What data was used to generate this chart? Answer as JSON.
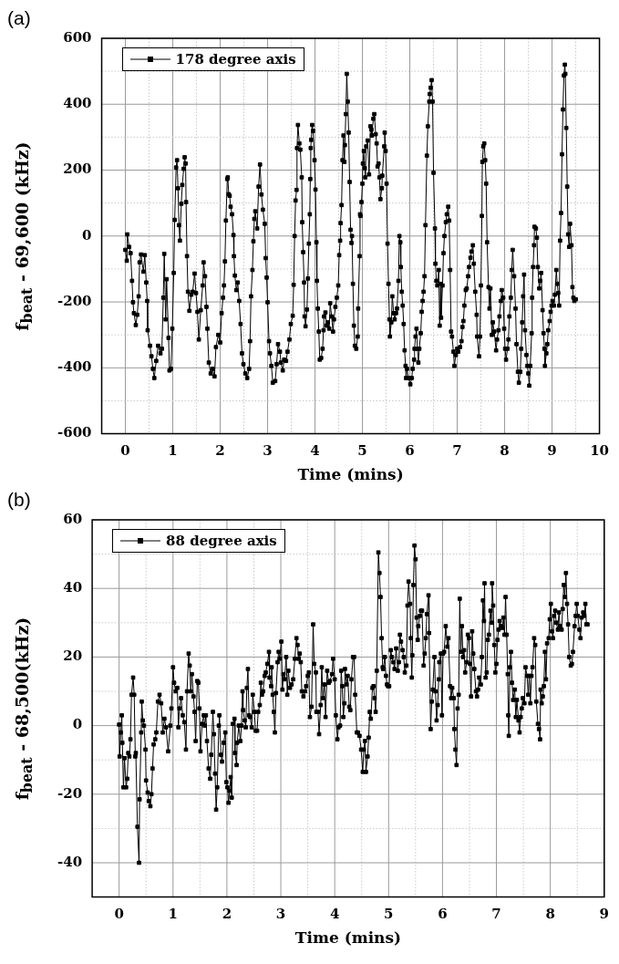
{
  "chart_data": [
    {
      "type": "line",
      "title": "(a)",
      "xlabel": "Time (mins)",
      "ylabel": "f$_{beat}$ - 69,600 (kHz)",
      "xlim": [
        -0.5,
        10
      ],
      "ylim": [
        -600,
        600
      ],
      "xticks": [
        0,
        {
          "value": 0.5,
          "label": null
        },
        1,
        {
          "value": 1.5,
          "label": null
        },
        2,
        {
          "value": 2.5,
          "label": null
        },
        3,
        {
          "value": 3.5,
          "label": null
        },
        4,
        {
          "value": 4.5,
          "label": null
        },
        5,
        {
          "value": 5.5,
          "label": null
        },
        6,
        {
          "value": 6.5,
          "label": null
        },
        7,
        {
          "value": 7.5,
          "label": null
        },
        8,
        {
          "value": 8.5,
          "label": null
        },
        9,
        {
          "value": 9.5,
          "label": null
        },
        10
      ],
      "yticks": [
        -600,
        {
          "value": -500,
          "label": null
        },
        -400,
        {
          "value": -300,
          "label": null
        },
        -200,
        {
          "value": -100,
          "label": null
        },
        0,
        {
          "value": 100,
          "label": null
        },
        200,
        {
          "value": 300,
          "label": null
        },
        400,
        {
          "value": 500,
          "label": null
        },
        600
      ],
      "grid": true,
      "legend": "top left",
      "marker": "square",
      "line_style": "solid",
      "series": [
        {
          "name": "178 degree axis",
          "color": "#000000",
          "x": [
            0,
            0.03,
            0.04,
            0.08,
            0.11,
            0.14,
            0.16,
            0.18,
            0.22,
            0.25,
            0.28,
            0.3,
            0.33,
            0.38,
            0.41,
            0.44,
            0.46,
            0.47,
            0.52,
            0.55,
            0.58,
            0.61,
            0.65,
            0.69,
            0.74,
            0.77,
            0.8,
            0.82,
            0.85,
            0.87,
            0.91,
            0.93,
            0.96,
            0.99,
            1.02,
            1.04,
            1.07,
            1.09,
            1.11,
            1.13,
            1.15,
            1.18,
            1.2,
            1.23,
            1.25,
            1.27,
            1.28,
            1.3,
            1.32,
            1.35,
            1.39,
            1.42,
            1.46,
            1.49,
            1.52,
            1.55,
            1.59,
            1.63,
            1.65,
            1.68,
            1.71,
            1.73,
            1.76,
            1.8,
            1.84,
            1.88,
            1.91,
            1.96,
            2.0,
            2.03,
            2.06,
            2.08,
            2.1,
            2.12,
            2.15,
            2.16,
            2.18,
            2.2,
            2.22,
            2.25,
            2.28,
            2.29,
            2.31,
            2.34,
            2.37,
            2.4,
            2.43,
            2.46,
            2.49,
            2.53,
            2.57,
            2.61,
            2.63,
            2.65,
            2.68,
            2.7,
            2.72,
            2.74,
            2.78,
            2.81,
            2.84,
            2.87,
            2.9,
            2.94,
            2.96,
            2.98,
            3.0,
            3.03,
            3.05,
            3.08,
            3.11,
            3.16,
            3.19,
            3.22,
            3.26,
            3.28,
            3.32,
            3.35,
            3.39,
            3.42,
            3.46,
            3.49,
            3.53,
            3.55,
            3.57,
            3.59,
            3.61,
            3.62,
            3.64,
            3.67,
            3.69,
            3.72,
            3.73,
            3.75,
            3.77,
            3.78,
            3.8,
            3.83,
            3.85,
            3.87,
            3.89,
            3.9,
            3.91,
            3.92,
            3.94,
            3.96,
            3.99,
            4.01,
            4.03,
            4.04,
            4.06,
            4.08,
            4.1,
            4.13,
            4.16,
            4.18,
            4.19,
            4.22,
            4.24,
            4.27,
            4.3,
            4.32,
            4.35,
            4.38,
            4.4,
            4.43,
            4.46,
            4.49,
            4.51,
            4.53,
            4.54,
            4.56,
            4.58,
            4.6,
            4.62,
            4.63,
            4.65,
            4.67,
            4.69,
            4.71,
            4.73,
            4.75,
            4.77,
            4.78,
            4.8,
            4.82,
            4.84,
            4.87,
            4.9,
            4.91,
            4.94,
            4.95,
            4.96,
            4.98,
            5.0,
            5.01,
            5.03,
            5.05,
            5.06,
            5.08,
            5.11,
            5.14,
            5.17,
            5.19,
            5.2,
            5.23,
            5.25,
            5.28,
            5.3,
            5.32,
            5.34,
            5.36,
            5.38,
            5.41,
            5.42,
            5.46,
            5.47,
            5.49,
            5.51,
            5.53,
            5.55,
            5.57,
            5.58,
            5.61,
            5.63,
            5.66,
            5.68,
            5.71,
            5.73,
            5.76,
            5.78,
            5.8,
            5.81,
            5.83,
            5.85,
            5.87,
            5.89,
            5.91,
            5.92,
            5.94,
            5.97,
            6.01,
            6.04,
            6.06,
            6.09,
            6.1,
            6.12,
            6.14,
            6.16,
            6.18,
            6.2,
            6.23,
            6.25,
            6.27,
            6.29,
            6.31,
            6.33,
            6.36,
            6.38,
            6.41,
            6.42,
            6.44,
            6.46,
            6.48,
            6.5,
            6.53,
            6.54,
            6.56,
            6.58,
            6.61,
            6.63,
            6.65,
            6.66,
            6.69,
            6.71,
            6.73,
            6.76,
            6.78,
            6.81,
            6.83,
            6.85,
            6.87,
            6.89,
            6.92,
            6.94,
            6.97,
            7.0,
            7.02,
            7.06,
            7.09,
            7.11,
            7.13,
            7.15,
            7.18,
            7.2,
            7.23,
            7.25,
            7.28,
            7.3,
            7.33,
            7.35,
            7.38,
            7.41,
            7.42,
            7.46,
            7.48,
            7.5,
            7.52,
            7.53,
            7.55,
            7.57,
            7.59,
            7.61,
            7.63,
            7.66,
            7.68,
            7.7,
            7.73,
            7.75,
            7.78,
            7.82,
            7.84,
            7.87,
            7.89,
            7.92,
            7.94,
            7.97,
            7.99,
            8.01,
            8.03,
            8.06,
            8.08,
            8.1,
            8.13,
            8.15,
            8.17,
            8.2,
            8.23,
            8.25,
            8.28,
            8.3,
            8.33,
            8.35,
            8.37,
            8.39,
            8.41,
            8.43,
            8.46,
            8.48,
            8.5,
            8.52,
            8.54,
            8.57,
            8.58,
            8.6,
            8.62,
            8.63,
            8.66,
            8.68,
            8.7,
            8.73,
            8.75,
            8.77,
            8.8,
            8.82,
            8.84,
            8.85,
            8.88,
            8.9,
            8.92,
            8.95,
            8.97,
            8.99,
            9.01,
            9.04,
            9.06,
            9.09,
            9.11,
            9.13,
            9.15,
            9.17,
            9.19,
            9.21,
            9.23,
            9.25,
            9.27,
            9.28,
            9.3,
            9.32,
            9.34,
            9.36,
            9.38,
            9.41,
            9.43,
            9.45,
            9.47,
            9.5
          ],
          "values": [
            -42,
            -75,
            5,
            -33,
            -52,
            -136,
            -201,
            -234,
            -270,
            -239,
            -183,
            -80,
            -56,
            -108,
            -58,
            -141,
            -197,
            -286,
            -333,
            -365,
            -403,
            -431,
            -379,
            -333,
            -356,
            -342,
            -187,
            -54,
            -253,
            -131,
            -309,
            -408,
            -403,
            -281,
            -112,
            49,
            208,
            230,
            145,
            33,
            -14,
            98,
            155,
            204,
            239,
            220,
            103,
            -61,
            -169,
            -227,
            -178,
            -169,
            -114,
            -173,
            -230,
            -314,
            -225,
            -150,
            -80,
            -122,
            -215,
            -281,
            -384,
            -417,
            -403,
            -426,
            -337,
            -300,
            -323,
            -234,
            -187,
            -150,
            -77,
            47,
            173,
            178,
            127,
            122,
            89,
            66,
            3,
            -61,
            -120,
            -164,
            -141,
            -197,
            -267,
            -356,
            -389,
            -417,
            -431,
            -403,
            -319,
            -183,
            -103,
            -16,
            52,
            75,
            23,
            150,
            217,
            126,
            80,
            37,
            -67,
            -126,
            -201,
            -319,
            -356,
            -394,
            -445,
            -440,
            -389,
            -328,
            -351,
            -384,
            -408,
            -375,
            -379,
            -351,
            -314,
            -267,
            -242,
            -148,
            0,
            108,
            140,
            267,
            337,
            281,
            262,
            178,
            42,
            -49,
            -141,
            -244,
            -274,
            -223,
            -129,
            -23,
            66,
            173,
            267,
            292,
            337,
            319,
            230,
            141,
            -19,
            -136,
            -220,
            -290,
            -375,
            -370,
            -342,
            -286,
            -244,
            -232,
            -272,
            -262,
            -281,
            -204,
            -244,
            -290,
            -253,
            -215,
            -187,
            -150,
            -58,
            -14,
            39,
            94,
            230,
            305,
            225,
            276,
            370,
            492,
            408,
            314,
            164,
            19,
            -21,
            0,
            -145,
            -272,
            -333,
            -342,
            -305,
            -220,
            -61,
            66,
            61,
            103,
            159,
            220,
            258,
            206,
            178,
            272,
            290,
            187,
            333,
            323,
            305,
            356,
            370,
            309,
            281,
            211,
            220,
            178,
            112,
            145,
            183,
            272,
            314,
            258,
            159,
            -23,
            -145,
            -253,
            -305,
            -262,
            -183,
            -234,
            -253,
            -234,
            -220,
            -136,
            0,
            -19,
            -94,
            -169,
            -211,
            -267,
            -347,
            -394,
            -431,
            -403,
            -431,
            -450,
            -431,
            -403,
            -375,
            -342,
            -305,
            -281,
            -342,
            -384,
            -342,
            -295,
            -230,
            -197,
            -169,
            -122,
            33,
            244,
            333,
            408,
            431,
            450,
            473,
            408,
            192,
            23,
            -84,
            -136,
            -150,
            -103,
            -272,
            -145,
            -248,
            -150,
            -52,
            0,
            42,
            66,
            89,
            47,
            -103,
            -290,
            -305,
            -351,
            -394,
            -361,
            -342,
            -351,
            -337,
            -319,
            -276,
            -258,
            -211,
            -164,
            -159,
            -122,
            -94,
            -66,
            -47,
            -28,
            -84,
            -169,
            -239,
            -305,
            -365,
            -305,
            -150,
            61,
            225,
            272,
            281,
            230,
            159,
            -19,
            -155,
            -220,
            -159,
            -300,
            -262,
            -290,
            -347,
            -314,
            -286,
            -244,
            -197,
            -164,
            -187,
            -281,
            -342,
            -375,
            -342,
            -314,
            -244,
            -187,
            -103,
            -42,
            -122,
            -220,
            -328,
            -412,
            -445,
            -412,
            -342,
            -262,
            -183,
            -117,
            -286,
            -361,
            -394,
            -417,
            -454,
            -394,
            -295,
            -187,
            -94,
            -28,
            28,
            23,
            -5,
            -94,
            -159,
            -136,
            -112,
            -225,
            -295,
            -342,
            -394,
            -356,
            -328,
            -286,
            -258,
            -230,
            -211,
            -197,
            -211,
            -178,
            -103,
            -145,
            -173,
            -211,
            -14,
            70,
            248,
            384,
            487,
            520,
            492,
            328,
            150,
            5,
            -33,
            37,
            -28,
            -155,
            -187,
            -197,
            -192
          ]
        }
      ]
    },
    {
      "type": "line",
      "title": "(b)",
      "xlabel": "Time (mins)",
      "ylabel": "f$_{beat}$ - 68,500(kHz)",
      "xlim": [
        -0.5,
        9
      ],
      "ylim": [
        -50,
        60
      ],
      "xticks": [
        0,
        {
          "value": 0.5,
          "label": null
        },
        1,
        {
          "value": 1.5,
          "label": null
        },
        2,
        {
          "value": 2.5,
          "label": null
        },
        3,
        {
          "value": 3.5,
          "label": null
        },
        4,
        {
          "value": 4.5,
          "label": null
        },
        5,
        {
          "value": 5.5,
          "label": null
        },
        6,
        {
          "value": 6.5,
          "label": null
        },
        7,
        {
          "value": 7.5,
          "label": null
        },
        8,
        {
          "value": 8.5,
          "label": null
        },
        9
      ],
      "yticks": [
        -40,
        {
          "value": -30,
          "label": null
        },
        -20,
        {
          "value": -10,
          "label": null
        },
        0,
        {
          "value": 10,
          "label": null
        },
        20,
        {
          "value": 30,
          "label": null
        },
        40,
        {
          "value": 50,
          "label": null
        },
        60
      ],
      "grid": true,
      "legend": "top left",
      "marker": "square",
      "line_style": "solid",
      "series": [
        {
          "name": "88 degree axis",
          "color": "#000000",
          "x": [
            0.0,
            0.01,
            0.03,
            0.05,
            0.06,
            0.08,
            0.1,
            0.13,
            0.15,
            0.17,
            0.19,
            0.21,
            0.23,
            0.26,
            0.28,
            0.3,
            0.31,
            0.34,
            0.37,
            0.38,
            0.41,
            0.42,
            0.44,
            0.46,
            0.49,
            0.5,
            0.53,
            0.55,
            0.58,
            0.6,
            0.62,
            0.64,
            0.67,
            0.69,
            0.72,
            0.75,
            0.78,
            0.81,
            0.84,
            0.87,
            0.91,
            0.95,
            0.97,
            1.0,
            1.02,
            1.05,
            1.08,
            1.1,
            1.12,
            1.15,
            1.18,
            1.21,
            1.24,
            1.26,
            1.29,
            1.31,
            1.33,
            1.35,
            1.38,
            1.4,
            1.42,
            1.45,
            1.47,
            1.49,
            1.51,
            1.54,
            1.57,
            1.59,
            1.61,
            1.63,
            1.66,
            1.69,
            1.71,
            1.74,
            1.76,
            1.78,
            1.8,
            1.82,
            1.85,
            1.86,
            1.89,
            1.91,
            1.94,
            1.97,
            1.99,
            2.01,
            2.03,
            2.05,
            2.07,
            2.09,
            2.11,
            2.14,
            2.15,
            2.18,
            2.19,
            2.22,
            2.25,
            2.27,
            2.29,
            2.3,
            2.33,
            2.35,
            2.37,
            2.39,
            2.41,
            2.43,
            2.46,
            2.48,
            2.51,
            2.53,
            2.56,
            2.58,
            2.61,
            2.63,
            2.65,
            2.67,
            2.7,
            2.72,
            2.75,
            2.78,
            2.79,
            2.82,
            2.83,
            2.85,
            2.87,
            2.89,
            2.91,
            2.94,
            2.96,
            2.98,
            3.01,
            3.03,
            3.05,
            3.07,
            3.1,
            3.12,
            3.14,
            3.17,
            3.2,
            3.23,
            3.26,
            3.29,
            3.31,
            3.33,
            3.35,
            3.37,
            3.39,
            3.42,
            3.45,
            3.47,
            3.5,
            3.52,
            3.54,
            3.57,
            3.6,
            3.62,
            3.65,
            3.66,
            3.69,
            3.71,
            3.74,
            3.76,
            3.78,
            3.81,
            3.83,
            3.86,
            3.89,
            3.91,
            3.95,
            3.97,
            4.0,
            4.02,
            4.05,
            4.07,
            4.1,
            4.12,
            4.14,
            4.16,
            4.18,
            4.19,
            4.22,
            4.24,
            4.27,
            4.29,
            4.31,
            4.34,
            4.36,
            4.38,
            4.41,
            4.43,
            4.46,
            4.49,
            4.52,
            4.54,
            4.56,
            4.58,
            4.61,
            4.63,
            4.65,
            4.67,
            4.7,
            4.72,
            4.74,
            4.76,
            4.78,
            4.81,
            4.83,
            4.85,
            4.87,
            4.89,
            4.9,
            4.93,
            4.95,
            4.97,
            4.99,
            5.01,
            5.04,
            5.06,
            5.09,
            5.11,
            5.14,
            5.17,
            5.19,
            5.21,
            5.23,
            5.26,
            5.28,
            5.3,
            5.33,
            5.35,
            5.37,
            5.4,
            5.41,
            5.43,
            5.44,
            5.46,
            5.48,
            5.5,
            5.52,
            5.54,
            5.55,
            5.58,
            5.6,
            5.62,
            5.65,
            5.67,
            5.69,
            5.71,
            5.74,
            5.75,
            5.78,
            5.8,
            5.82,
            5.85,
            5.87,
            5.89,
            5.91,
            5.93,
            5.94,
            5.97,
            5.99,
            6.01,
            6.03,
            6.06,
            6.09,
            6.11,
            6.14,
            6.16,
            6.18,
            6.21,
            6.22,
            6.24,
            6.26,
            6.28,
            6.3,
            6.32,
            6.34,
            6.36,
            6.38,
            6.4,
            6.42,
            6.45,
            6.47,
            6.49,
            6.51,
            6.53,
            6.55,
            6.57,
            6.59,
            6.62,
            6.64,
            6.66,
            6.68,
            6.71,
            6.73,
            6.75,
            6.77,
            6.78,
            6.8,
            6.82,
            6.84,
            6.86,
            6.89,
            6.91,
            6.92,
            6.94,
            6.96,
            6.98,
            7.0,
            7.02,
            7.04,
            7.06,
            7.09,
            7.11,
            7.13,
            7.15,
            7.17,
            7.19,
            7.21,
            7.22,
            7.23,
            7.25,
            7.27,
            7.29,
            7.31,
            7.34,
            7.36,
            7.38,
            7.41,
            7.43,
            7.45,
            7.47,
            7.49,
            7.52,
            7.54,
            7.57,
            7.59,
            7.61,
            7.63,
            7.65,
            7.67,
            7.7,
            7.72,
            7.74,
            7.77,
            7.79,
            7.81,
            7.82,
            7.84,
            7.86,
            7.88,
            7.9,
            7.92,
            7.94,
            7.97,
            7.99,
            8.01,
            8.03,
            8.05,
            8.07,
            8.09,
            8.11,
            8.14,
            8.16,
            8.18,
            8.21,
            8.23,
            8.25,
            8.27,
            8.29,
            8.31,
            8.33,
            8.35,
            8.38,
            8.4,
            8.42,
            8.45,
            8.47,
            8.49,
            8.51,
            8.54,
            8.56,
            8.58,
            8.61,
            8.63,
            8.65,
            8.67,
            8.69
          ],
          "values": [
            0.3,
            -9,
            -2,
            3,
            -5,
            -18,
            -9.5,
            -18,
            -15.5,
            -8,
            -9,
            -4,
            9,
            14,
            9,
            -9,
            -8,
            -29.5,
            -40,
            -21.5,
            -2,
            7,
            1.5,
            0,
            -7,
            -16,
            -19.5,
            -22,
            -23.5,
            -20,
            -12.5,
            -5.5,
            -4,
            -2,
            7,
            9,
            6.5,
            -2,
            2,
            -0.5,
            -7.5,
            0,
            5,
            17,
            12.5,
            10,
            11,
            -0.5,
            5,
            8,
            3,
            1,
            -7,
            10,
            21,
            17.5,
            10,
            15,
            8.5,
            4,
            -4.5,
            13,
            12.5,
            5,
            -7.5,
            0.5,
            3,
            0,
            3,
            -4.5,
            -12.5,
            -15.5,
            -8.5,
            4,
            -2.5,
            -14,
            -24.5,
            -18,
            0,
            3,
            -8.5,
            -10.5,
            -5,
            -2,
            -16.5,
            -18,
            -22.5,
            -19,
            -15,
            -21,
            0.5,
            2,
            -8,
            -11.5,
            -5,
            0,
            -4.5,
            0,
            10,
            4.5,
            1.5,
            -0.5,
            11,
            16.5,
            3,
            2.5,
            -0.5,
            9,
            4,
            -1.5,
            -1.5,
            4,
            6,
            12.5,
            9,
            10,
            14.5,
            15.5,
            18,
            21.5,
            14,
            11.5,
            17,
            9,
            4,
            -2,
            9.5,
            18.5,
            21.5,
            19.5,
            24.5,
            10.5,
            15,
            13.5,
            20,
            9,
            16,
            11,
            12,
            13.5,
            19.5,
            25.5,
            23.5,
            19.5,
            21,
            18.5,
            10,
            8.5,
            10,
            11.5,
            14.5,
            15.5,
            2.5,
            5.5,
            29.5,
            18,
            15.5,
            4,
            4,
            -2.5,
            6,
            17,
            8,
            12,
            2.5,
            16,
            12.5,
            13,
            15,
            19.5,
            13.5,
            3,
            -4,
            -0.5,
            0,
            16,
            11.5,
            2.5,
            6.5,
            16.5,
            12,
            14.5,
            5.5,
            4.5,
            13.5,
            20,
            20,
            9,
            -2,
            -2,
            -3,
            -7,
            -13.5,
            -7,
            -4.5,
            -13.5,
            -9,
            -3.5,
            4,
            2,
            11,
            11.5,
            8,
            4,
            16,
            50.5,
            44.5,
            37.5,
            25.5,
            17,
            16.5,
            20,
            14.5,
            12,
            11.5,
            11.5,
            22,
            20,
            18.5,
            16.5,
            22.5,
            16,
            18.5,
            26.5,
            24.5,
            22,
            20,
            15.5,
            17.5,
            35,
            42,
            35.5,
            25.5,
            14,
            20.5,
            41,
            52.5,
            48.5,
            31.5,
            25,
            29,
            32,
            33.5,
            33.5,
            17.5,
            21,
            25.5,
            32.5,
            38,
            27,
            -1,
            7,
            10.5,
            20,
            10,
            1.5,
            6,
            13.5,
            18.5,
            21,
            3,
            21,
            21.5,
            29,
            23,
            25.5,
            11.5,
            8,
            11,
            8,
            -1,
            -7,
            -11.5,
            5,
            9,
            37,
            21.5,
            29,
            20,
            22,
            15.5,
            18.5,
            26.5,
            25.5,
            18,
            8.5,
            27.5,
            21,
            16.5,
            10,
            8.5,
            10.5,
            14,
            12,
            20,
            36.5,
            30.5,
            41.5,
            14,
            15.5,
            25,
            26.5,
            33.5,
            30,
            41.5,
            35,
            23.5,
            15.5,
            18,
            25,
            28,
            30.5,
            29,
            28.5,
            31.5,
            26.5,
            37.5,
            26.5,
            15,
            3,
            -3,
            17,
            21.5,
            12.5,
            7.5,
            10.5,
            2.5,
            7.5,
            1.5,
            -2,
            2.5,
            5,
            8,
            6.5,
            17,
            14.5,
            9,
            14.5,
            6.5,
            14.5,
            17,
            25.5,
            23.5,
            7,
            0.5,
            -1,
            -4,
            10.5,
            6.5,
            8.5,
            11.5,
            21.5,
            13.5,
            24,
            25.5,
            31,
            35.5,
            27.5,
            25.5,
            32,
            33.5,
            30,
            28,
            33,
            29,
            28,
            34,
            41,
            37.5,
            44.5,
            35.5,
            29.5,
            20,
            17.5,
            18,
            21.5,
            29,
            32,
            35.5,
            32,
            28,
            25.5,
            31.5,
            33,
            32,
            35.5,
            29.5,
            29.5
          ]
        }
      ]
    }
  ]
}
